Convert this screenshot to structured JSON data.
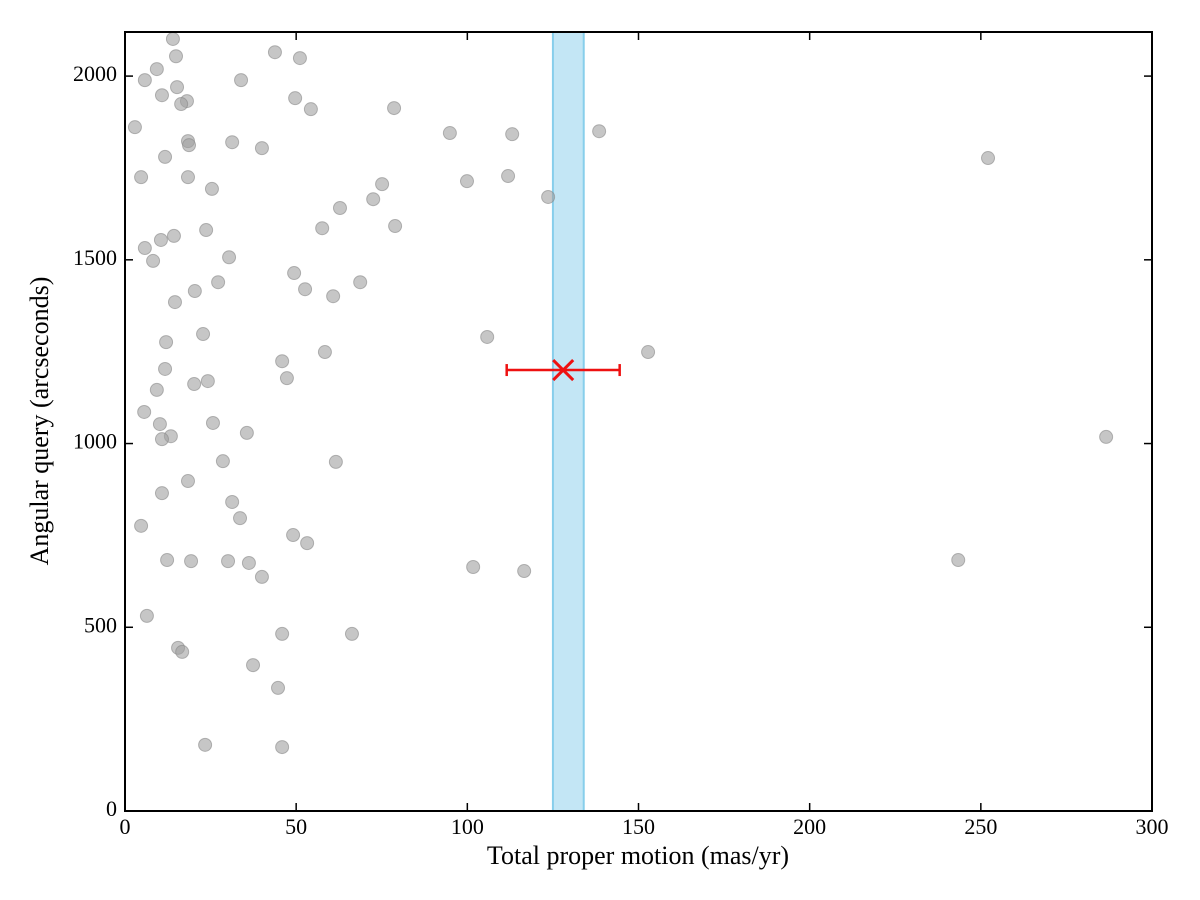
{
  "chart_data": {
    "type": "scatter",
    "x_label": "Total proper motion (mas/yr)",
    "y_label": "Angular query (arcseconds)",
    "xlim": [
      0,
      300
    ],
    "ylim": [
      0,
      2120
    ],
    "xticks": [
      0,
      50,
      100,
      150,
      200,
      250,
      300
    ],
    "yticks": [
      0,
      500,
      1000,
      1500,
      2000
    ],
    "color": "#a0a0a0",
    "x": [
      14.0,
      2.9,
      5.8,
      9.3,
      14.9,
      10.8,
      15.2,
      18.1,
      16.4,
      33.9,
      43.8,
      51.1,
      49.7,
      54.3,
      78.6,
      94.9,
      113.1,
      138.5,
      252.1,
      18.4,
      18.7,
      31.3,
      40.0,
      11.7,
      4.7,
      18.4,
      25.4,
      75.1,
      99.9,
      111.9,
      72.5,
      123.6,
      62.8,
      78.9,
      57.6,
      23.7,
      14.3,
      10.5,
      5.8,
      8.2,
      30.4,
      49.4,
      27.2,
      68.7,
      52.6,
      20.4,
      60.8,
      14.6,
      22.8,
      105.8,
      12.0,
      58.4,
      152.8,
      45.9,
      11.7,
      47.3,
      24.2,
      20.2,
      9.3,
      5.6,
      10.2,
      25.7,
      13.4,
      10.8,
      35.6,
      286.6,
      28.6,
      61.6,
      18.4,
      10.8,
      31.3,
      33.6,
      4.7,
      49.1,
      53.2,
      12.3,
      19.3,
      30.1,
      36.2,
      40.0,
      101.7,
      116.6,
      243.4,
      6.4,
      45.9,
      66.3,
      15.5,
      16.7,
      37.4,
      44.7,
      23.4,
      45.9
    ],
    "y": [
      2101,
      1861,
      1989,
      2019,
      2054,
      1948,
      1970,
      1932,
      1924,
      1989,
      2065,
      2049,
      1940,
      1910,
      1913,
      1845,
      1842,
      1850,
      1777,
      1823,
      1812,
      1820,
      1804,
      1780,
      1725,
      1725,
      1693,
      1706,
      1714,
      1728,
      1665,
      1671,
      1641,
      1592,
      1586,
      1581,
      1565,
      1554,
      1532,
      1497,
      1507,
      1464,
      1439,
      1439,
      1420,
      1415,
      1401,
      1385,
      1298,
      1290,
      1276,
      1249,
      1249,
      1224,
      1203,
      1178,
      1170,
      1162,
      1146,
      1086,
      1053,
      1056,
      1020,
      1012,
      1029,
      1018,
      952,
      950,
      898,
      865,
      841,
      797,
      776,
      751,
      729,
      683,
      680,
      680,
      675,
      637,
      664,
      653,
      683,
      531,
      482,
      482,
      444,
      433,
      397,
      335,
      180,
      174
    ],
    "band": {
      "x": [
        125,
        134
      ],
      "color": "#87ceeb"
    },
    "highlight": {
      "x": 128,
      "y": 1200,
      "xerr": 16.5,
      "color": "#ee1111"
    }
  }
}
